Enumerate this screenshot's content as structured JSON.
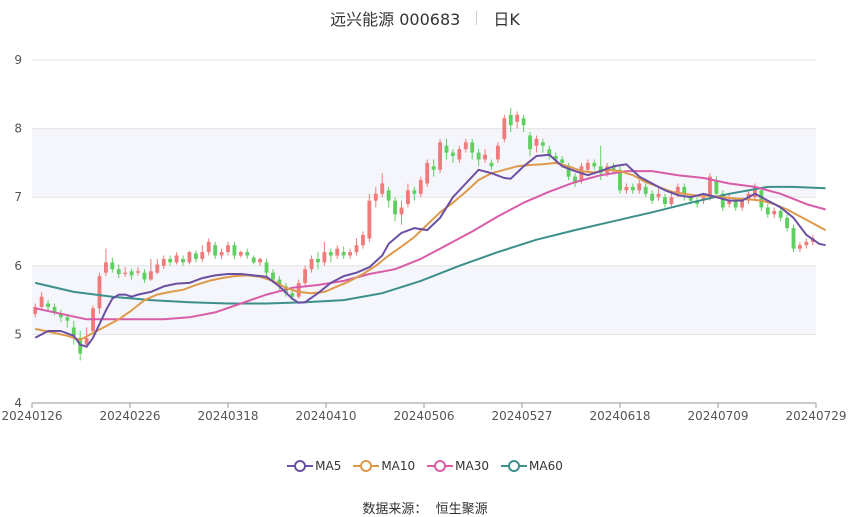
{
  "header": {
    "title": "远兴能源 000683",
    "period": "日K"
  },
  "source_label": "数据来源：",
  "source_value": "恒生聚源",
  "colors": {
    "up": "#f07b7b",
    "down": "#5fcf60",
    "MA5": "#6b4fa3",
    "MA10": "#de9a4a",
    "MA30": "#d85ca8",
    "MA60": "#3c8f8a",
    "grid": "#e3e3e3",
    "band": "#f4f6fb"
  },
  "chart_data": {
    "type": "candlestick",
    "ylim": [
      4,
      9
    ],
    "yticks": [
      "4",
      "5",
      "6",
      "7",
      "8",
      "9"
    ],
    "xticks": [
      "20240126",
      "20240226",
      "20240318",
      "20240410",
      "20240506",
      "20240527",
      "20240618",
      "20240709",
      "20240729"
    ],
    "legend": [
      "MA5",
      "MA10",
      "MA30",
      "MA60"
    ],
    "candles": [
      [
        5.3,
        5.4,
        5.25,
        5.45
      ],
      [
        5.4,
        5.55,
        5.35,
        5.62
      ],
      [
        5.45,
        5.4,
        5.35,
        5.5
      ],
      [
        5.4,
        5.32,
        5.28,
        5.45
      ],
      [
        5.3,
        5.25,
        5.18,
        5.36
      ],
      [
        5.25,
        5.2,
        5.1,
        5.3
      ],
      [
        5.1,
        4.98,
        4.85,
        5.2
      ],
      [
        4.95,
        4.72,
        4.62,
        5.05
      ],
      [
        4.85,
        4.95,
        4.8,
        5.1
      ],
      [
        5.05,
        5.38,
        5.0,
        5.42
      ],
      [
        5.38,
        5.85,
        5.3,
        5.9
      ],
      [
        5.9,
        6.05,
        5.85,
        6.25
      ],
      [
        6.05,
        5.95,
        5.9,
        6.12
      ],
      [
        5.95,
        5.88,
        5.82,
        6.02
      ],
      [
        5.88,
        5.9,
        5.84,
        5.98
      ],
      [
        5.92,
        5.86,
        5.8,
        5.96
      ],
      [
        5.9,
        5.92,
        5.86,
        5.98
      ],
      [
        5.9,
        5.8,
        5.75,
        5.95
      ],
      [
        5.8,
        5.92,
        5.78,
        6.1
      ],
      [
        5.9,
        6.02,
        5.88,
        6.1
      ],
      [
        6.0,
        6.1,
        5.95,
        6.15
      ],
      [
        6.1,
        6.05,
        6.0,
        6.15
      ],
      [
        6.05,
        6.15,
        6.02,
        6.2
      ],
      [
        6.1,
        6.05,
        6.0,
        6.15
      ],
      [
        6.05,
        6.2,
        6.02,
        6.22
      ],
      [
        6.18,
        6.1,
        6.05,
        6.22
      ],
      [
        6.1,
        6.2,
        6.05,
        6.3
      ],
      [
        6.2,
        6.35,
        6.15,
        6.4
      ],
      [
        6.3,
        6.15,
        6.1,
        6.35
      ],
      [
        6.15,
        6.2,
        6.1,
        6.25
      ],
      [
        6.2,
        6.3,
        6.15,
        6.35
      ],
      [
        6.3,
        6.15,
        6.1,
        6.35
      ],
      [
        6.15,
        6.2,
        6.12,
        6.22
      ],
      [
        6.2,
        6.15,
        6.1,
        6.25
      ],
      [
        6.12,
        6.05,
        6.02,
        6.15
      ],
      [
        6.05,
        6.1,
        6.0,
        6.12
      ],
      [
        6.05,
        5.9,
        5.85,
        6.1
      ],
      [
        5.9,
        5.8,
        5.75,
        5.95
      ],
      [
        5.8,
        5.7,
        5.65,
        5.85
      ],
      [
        5.7,
        5.6,
        5.55,
        5.75
      ],
      [
        5.6,
        5.55,
        5.5,
        5.65
      ],
      [
        5.55,
        5.75,
        5.52,
        5.8
      ],
      [
        5.75,
        5.95,
        5.7,
        6.0
      ],
      [
        5.95,
        6.1,
        5.9,
        6.15
      ],
      [
        6.1,
        6.05,
        5.95,
        6.2
      ],
      [
        6.05,
        6.2,
        6.0,
        6.35
      ],
      [
        6.2,
        6.15,
        6.05,
        6.25
      ],
      [
        6.15,
        6.25,
        6.1,
        6.3
      ],
      [
        6.2,
        6.15,
        6.1,
        6.28
      ],
      [
        6.15,
        6.2,
        6.1,
        6.25
      ],
      [
        6.2,
        6.3,
        6.15,
        6.4
      ],
      [
        6.3,
        6.45,
        6.25,
        6.5
      ],
      [
        6.4,
        6.95,
        6.35,
        7.05
      ],
      [
        6.95,
        7.05,
        6.85,
        7.15
      ],
      [
        7.05,
        7.2,
        7.0,
        7.35
      ],
      [
        7.1,
        6.95,
        6.85,
        7.15
      ],
      [
        6.95,
        6.75,
        6.65,
        7.0
      ],
      [
        6.75,
        6.85,
        6.6,
        6.95
      ],
      [
        6.9,
        7.1,
        6.85,
        7.2
      ],
      [
        7.1,
        7.05,
        6.95,
        7.15
      ],
      [
        7.05,
        7.25,
        7.0,
        7.3
      ],
      [
        7.2,
        7.5,
        7.15,
        7.55
      ],
      [
        7.45,
        7.4,
        7.3,
        7.55
      ],
      [
        7.4,
        7.8,
        7.35,
        7.85
      ],
      [
        7.75,
        7.65,
        7.55,
        7.85
      ],
      [
        7.65,
        7.6,
        7.5,
        7.7
      ],
      [
        7.55,
        7.7,
        7.5,
        7.75
      ],
      [
        7.7,
        7.8,
        7.65,
        7.85
      ],
      [
        7.8,
        7.65,
        7.55,
        7.85
      ],
      [
        7.65,
        7.55,
        7.45,
        7.7
      ],
      [
        7.55,
        7.62,
        7.5,
        7.7
      ],
      [
        7.5,
        7.45,
        7.4,
        7.55
      ],
      [
        7.55,
        7.75,
        7.5,
        7.8
      ],
      [
        7.85,
        8.15,
        7.8,
        8.2
      ],
      [
        8.2,
        8.05,
        7.95,
        8.3
      ],
      [
        8.1,
        8.2,
        8.0,
        8.25
      ],
      [
        8.15,
        8.05,
        7.95,
        8.2
      ],
      [
        7.9,
        7.7,
        7.6,
        7.95
      ],
      [
        7.75,
        7.85,
        7.65,
        7.9
      ],
      [
        7.8,
        7.75,
        7.65,
        7.85
      ],
      [
        7.7,
        7.6,
        7.55,
        7.75
      ],
      [
        7.6,
        7.55,
        7.5,
        7.65
      ],
      [
        7.55,
        7.5,
        7.45,
        7.6
      ],
      [
        7.45,
        7.3,
        7.25,
        7.5
      ],
      [
        7.3,
        7.2,
        7.15,
        7.35
      ],
      [
        7.25,
        7.45,
        7.2,
        7.5
      ],
      [
        7.4,
        7.5,
        7.35,
        7.55
      ],
      [
        7.5,
        7.45,
        7.4,
        7.55
      ],
      [
        7.45,
        7.35,
        7.25,
        7.75
      ],
      [
        7.35,
        7.45,
        7.3,
        7.5
      ],
      [
        7.45,
        7.4,
        7.35,
        7.5
      ],
      [
        7.4,
        7.1,
        7.05,
        7.45
      ],
      [
        7.1,
        7.15,
        7.05,
        7.2
      ],
      [
        7.15,
        7.1,
        7.05,
        7.2
      ],
      [
        7.1,
        7.2,
        7.05,
        7.25
      ],
      [
        7.15,
        7.05,
        7.0,
        7.2
      ],
      [
        7.05,
        6.95,
        6.9,
        7.1
      ],
      [
        7.0,
        7.05,
        6.95,
        7.15
      ],
      [
        7.0,
        6.9,
        6.85,
        7.05
      ],
      [
        6.9,
        7.0,
        6.85,
        7.1
      ],
      [
        7.05,
        7.15,
        7.0,
        7.2
      ],
      [
        7.15,
        7.05,
        6.95,
        7.2
      ],
      [
        7.0,
        6.95,
        6.9,
        7.05
      ],
      [
        6.95,
        6.9,
        6.85,
        7.0
      ],
      [
        6.95,
        7.0,
        6.9,
        7.05
      ],
      [
        7.0,
        7.3,
        6.95,
        7.35
      ],
      [
        7.25,
        7.05,
        7.0,
        7.3
      ],
      [
        7.05,
        6.85,
        6.8,
        7.1
      ],
      [
        6.9,
        6.95,
        6.85,
        7.05
      ],
      [
        6.95,
        6.85,
        6.8,
        7.0
      ],
      [
        6.85,
        6.95,
        6.8,
        7.0
      ],
      [
        6.95,
        7.05,
        6.9,
        7.1
      ],
      [
        7.0,
        7.15,
        6.95,
        7.2
      ],
      [
        7.1,
        6.85,
        6.8,
        7.15
      ],
      [
        6.85,
        6.75,
        6.7,
        6.9
      ],
      [
        6.75,
        6.8,
        6.7,
        6.85
      ],
      [
        6.8,
        6.7,
        6.65,
        6.85
      ],
      [
        6.7,
        6.55,
        6.5,
        6.75
      ],
      [
        6.55,
        6.25,
        6.2,
        6.6
      ],
      [
        6.25,
        6.3,
        6.2,
        6.35
      ],
      [
        6.3,
        6.35,
        6.25,
        6.4
      ],
      [
        6.35,
        6.4,
        6.3,
        6.45
      ]
    ],
    "ma5": [
      [
        0,
        4.95
      ],
      [
        2,
        5.05
      ],
      [
        4,
        5.05
      ],
      [
        6,
        4.98
      ],
      [
        7,
        4.85
      ],
      [
        8,
        4.82
      ],
      [
        9,
        4.95
      ],
      [
        10,
        5.15
      ],
      [
        11,
        5.35
      ],
      [
        12,
        5.52
      ],
      [
        13,
        5.58
      ],
      [
        14,
        5.58
      ],
      [
        15,
        5.55
      ],
      [
        16,
        5.58
      ],
      [
        18,
        5.62
      ],
      [
        20,
        5.7
      ],
      [
        22,
        5.74
      ],
      [
        24,
        5.75
      ],
      [
        26,
        5.82
      ],
      [
        28,
        5.86
      ],
      [
        30,
        5.88
      ],
      [
        32,
        5.88
      ],
      [
        34,
        5.86
      ],
      [
        36,
        5.84
      ],
      [
        38,
        5.7
      ],
      [
        40,
        5.52
      ],
      [
        41,
        5.46
      ],
      [
        42,
        5.47
      ],
      [
        44,
        5.6
      ],
      [
        46,
        5.75
      ],
      [
        48,
        5.85
      ],
      [
        50,
        5.9
      ],
      [
        52,
        5.98
      ],
      [
        54,
        6.15
      ],
      [
        55,
        6.32
      ],
      [
        57,
        6.48
      ],
      [
        59,
        6.55
      ],
      [
        61,
        6.52
      ],
      [
        63,
        6.7
      ],
      [
        65,
        7.0
      ],
      [
        67,
        7.2
      ],
      [
        69,
        7.4
      ],
      [
        71,
        7.35
      ],
      [
        73,
        7.28
      ],
      [
        74,
        7.27
      ],
      [
        76,
        7.45
      ],
      [
        78,
        7.6
      ],
      [
        80,
        7.62
      ],
      [
        82,
        7.45
      ],
      [
        84,
        7.38
      ],
      [
        86,
        7.32
      ],
      [
        88,
        7.38
      ],
      [
        90,
        7.45
      ],
      [
        92,
        7.48
      ],
      [
        94,
        7.3
      ],
      [
        96,
        7.2
      ],
      [
        98,
        7.1
      ],
      [
        100,
        7.03
      ],
      [
        102,
        7.0
      ],
      [
        104,
        7.05
      ],
      [
        106,
        7.0
      ],
      [
        108,
        6.95
      ],
      [
        110,
        6.95
      ],
      [
        112,
        7.05
      ],
      [
        114,
        6.95
      ],
      [
        116,
        6.85
      ],
      [
        118,
        6.7
      ],
      [
        120,
        6.45
      ],
      [
        122,
        6.32
      ],
      [
        123,
        6.3
      ]
    ],
    "ma10": [
      [
        0,
        5.08
      ],
      [
        3,
        5.02
      ],
      [
        5,
        4.98
      ],
      [
        7,
        4.92
      ],
      [
        9,
        5.02
      ],
      [
        11,
        5.12
      ],
      [
        13,
        5.22
      ],
      [
        15,
        5.35
      ],
      [
        17,
        5.5
      ],
      [
        19,
        5.58
      ],
      [
        21,
        5.62
      ],
      [
        23,
        5.65
      ],
      [
        25,
        5.72
      ],
      [
        27,
        5.78
      ],
      [
        29,
        5.82
      ],
      [
        31,
        5.85
      ],
      [
        33,
        5.86
      ],
      [
        35,
        5.84
      ],
      [
        37,
        5.78
      ],
      [
        39,
        5.68
      ],
      [
        41,
        5.62
      ],
      [
        43,
        5.6
      ],
      [
        45,
        5.62
      ],
      [
        47,
        5.7
      ],
      [
        49,
        5.78
      ],
      [
        51,
        5.88
      ],
      [
        53,
        6.0
      ],
      [
        55,
        6.15
      ],
      [
        57,
        6.28
      ],
      [
        59,
        6.42
      ],
      [
        61,
        6.6
      ],
      [
        63,
        6.78
      ],
      [
        65,
        6.92
      ],
      [
        67,
        7.08
      ],
      [
        69,
        7.25
      ],
      [
        71,
        7.35
      ],
      [
        73,
        7.4
      ],
      [
        75,
        7.45
      ],
      [
        77,
        7.47
      ],
      [
        79,
        7.48
      ],
      [
        81,
        7.5
      ],
      [
        83,
        7.45
      ],
      [
        85,
        7.38
      ],
      [
        87,
        7.36
      ],
      [
        89,
        7.4
      ],
      [
        91,
        7.38
      ],
      [
        93,
        7.32
      ],
      [
        95,
        7.22
      ],
      [
        97,
        7.15
      ],
      [
        99,
        7.08
      ],
      [
        101,
        7.05
      ],
      [
        103,
        7.02
      ],
      [
        105,
        7.02
      ],
      [
        107,
        7.0
      ],
      [
        109,
        6.98
      ],
      [
        111,
        6.97
      ],
      [
        113,
        6.95
      ],
      [
        115,
        6.9
      ],
      [
        117,
        6.82
      ],
      [
        119,
        6.72
      ],
      [
        121,
        6.62
      ],
      [
        123,
        6.52
      ]
    ],
    "ma30": [
      [
        0,
        5.38
      ],
      [
        4,
        5.3
      ],
      [
        8,
        5.22
      ],
      [
        12,
        5.22
      ],
      [
        16,
        5.22
      ],
      [
        20,
        5.22
      ],
      [
        24,
        5.25
      ],
      [
        28,
        5.32
      ],
      [
        32,
        5.45
      ],
      [
        36,
        5.58
      ],
      [
        40,
        5.68
      ],
      [
        44,
        5.72
      ],
      [
        48,
        5.78
      ],
      [
        52,
        5.88
      ],
      [
        56,
        5.95
      ],
      [
        60,
        6.1
      ],
      [
        64,
        6.3
      ],
      [
        68,
        6.5
      ],
      [
        72,
        6.72
      ],
      [
        76,
        6.92
      ],
      [
        80,
        7.08
      ],
      [
        84,
        7.22
      ],
      [
        88,
        7.32
      ],
      [
        92,
        7.38
      ],
      [
        96,
        7.38
      ],
      [
        100,
        7.32
      ],
      [
        104,
        7.28
      ],
      [
        108,
        7.2
      ],
      [
        112,
        7.15
      ],
      [
        116,
        7.05
      ],
      [
        120,
        6.9
      ],
      [
        123,
        6.82
      ]
    ],
    "ma60": [
      [
        0,
        5.75
      ],
      [
        6,
        5.62
      ],
      [
        12,
        5.55
      ],
      [
        18,
        5.5
      ],
      [
        24,
        5.47
      ],
      [
        30,
        5.45
      ],
      [
        36,
        5.45
      ],
      [
        42,
        5.47
      ],
      [
        48,
        5.5
      ],
      [
        54,
        5.6
      ],
      [
        60,
        5.78
      ],
      [
        66,
        6.0
      ],
      [
        72,
        6.2
      ],
      [
        78,
        6.38
      ],
      [
        84,
        6.52
      ],
      [
        90,
        6.65
      ],
      [
        96,
        6.78
      ],
      [
        102,
        6.92
      ],
      [
        108,
        7.05
      ],
      [
        114,
        7.15
      ],
      [
        118,
        7.15
      ],
      [
        123,
        7.13
      ]
    ]
  }
}
